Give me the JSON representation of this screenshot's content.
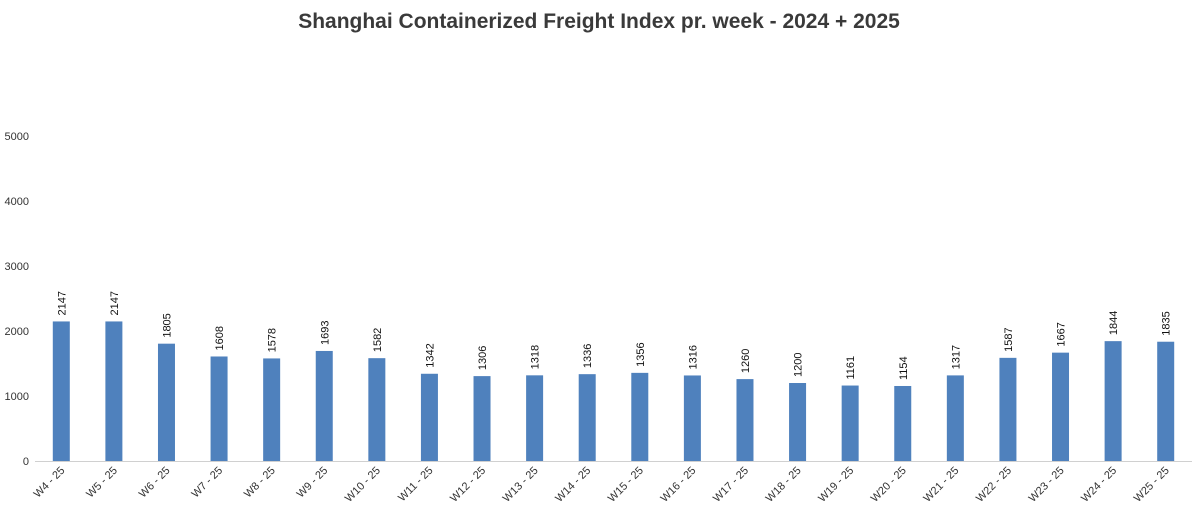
{
  "chart_data": {
    "type": "bar",
    "title": "Shanghai Containerized Freight Index pr. week - 2024 + 2025",
    "xlabel": "",
    "ylabel": "",
    "ylim": [
      0,
      5000
    ],
    "yticks": [
      0,
      1000,
      2000,
      3000,
      4000,
      5000
    ],
    "grid": false,
    "legend": "none",
    "bar_color": "#4f81bd",
    "categories": [
      "W4 - 25",
      "W5 - 25",
      "W6 - 25",
      "W7 - 25",
      "W8 - 25",
      "W9 - 25",
      "W10 - 25",
      "W11 - 25",
      "W12 - 25",
      "W13 - 25",
      "W14 - 25",
      "W15 - 25",
      "W16 - 25",
      "W17 - 25",
      "W18 - 25",
      "W19 - 25",
      "W20 - 25",
      "W21 - 25",
      "W22 - 25",
      "W23 - 25",
      "W24 - 25",
      "W25 - 25"
    ],
    "values": [
      2147,
      2147,
      1805,
      1608,
      1578,
      1693,
      1582,
      1342,
      1306,
      1318,
      1336,
      1356,
      1316,
      1260,
      1200,
      1161,
      1154,
      1317,
      1587,
      1667,
      1844,
      1835
    ]
  }
}
